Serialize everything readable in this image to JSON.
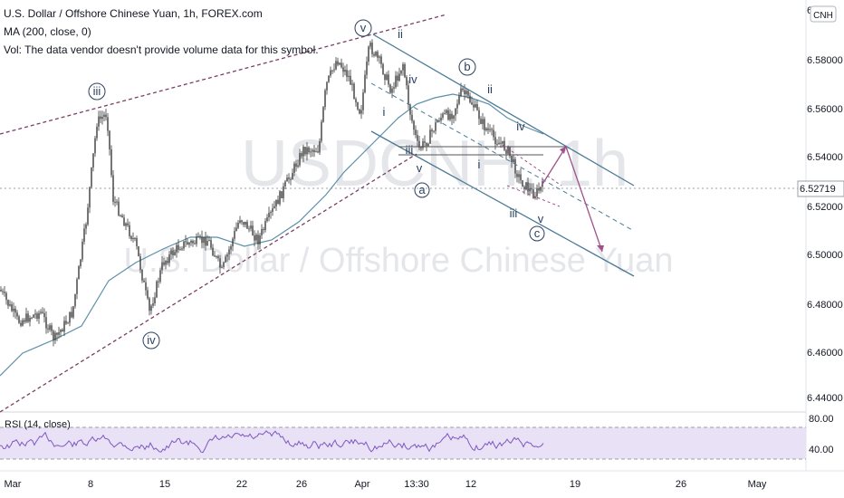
{
  "header": {
    "title": "U.S. Dollar / Offshore Chinese Yuan, 1h, FOREX.com",
    "ma": "MA (200, close, 0)",
    "vol": "Vol: The data vendor doesn't provide volume data for this symbol."
  },
  "watermark": {
    "symbol": "USDCNH, 1h",
    "name": "U.S. Dollar / Offshore Chinese Yuan"
  },
  "currency_badge": "CNH",
  "price_axis": {
    "ticks": [
      "6.58000",
      "6.56000",
      "6.54000",
      "6.52000",
      "6.50000",
      "6.48000",
      "6.46000",
      "6.44000"
    ],
    "top_partial": "6",
    "current_price": "6.52719"
  },
  "rsi": {
    "label": "RSI (14, close)",
    "ticks": [
      "80.00",
      "40.00"
    ]
  },
  "time_axis": [
    "Mar",
    "8",
    "15",
    "22",
    "26",
    "Apr",
    "13:30",
    "12",
    "19",
    "26",
    "May"
  ],
  "waves": {
    "iii_top": "iii",
    "iv_low": "iv",
    "v_top": "v",
    "ii_a": "ii",
    "iv_a": "iv",
    "i_a": "i",
    "iii_b": "iii",
    "v_b": "v",
    "a_label": "a",
    "b_label": "b",
    "ii_b": "ii",
    "i_b": "i",
    "iv_b": "iv",
    "iii_c": "iii",
    "v_c": "v",
    "c_label": "c"
  },
  "colors": {
    "candle": "#3a3a3a",
    "ma": "#5b8fa8",
    "channel_top": "#7b3e63",
    "channel_down": "#4a7a96",
    "projection": "#a0508a",
    "rsi_line": "#7e57c2",
    "rsi_band": "#e9e1f5",
    "label_blue": "#2a3f5f"
  },
  "chart_data": {
    "type": "candlestick",
    "symbol": "USDCNH",
    "timeframe": "1h",
    "y_range": [
      6.44,
      6.59
    ],
    "indicators": [
      "MA (200, close, 0)",
      "RSI (14, close)"
    ],
    "rsi_levels": [
      80,
      40
    ],
    "last_price": 6.52719,
    "key_closes": [
      {
        "x": "Mar",
        "y": 6.475
      },
      {
        "x": "8",
        "y": 6.5625
      },
      {
        "x": "15",
        "y": 6.48
      },
      {
        "x": "22",
        "y": 6.51
      },
      {
        "x": "26",
        "y": 6.545
      },
      {
        "x": "Apr",
        "y": 6.585
      },
      {
        "x": "13:30",
        "y": 6.545
      },
      {
        "x": "12",
        "y": 6.57
      },
      {
        "x": "19",
        "y": 6.525
      }
    ]
  }
}
